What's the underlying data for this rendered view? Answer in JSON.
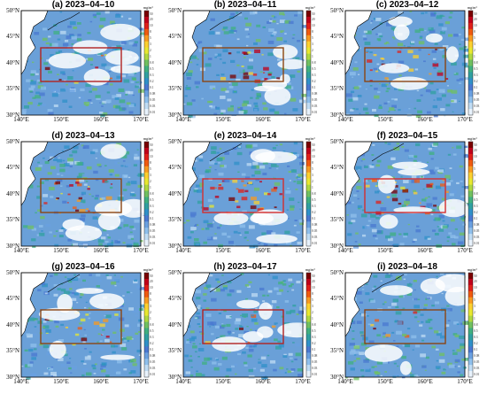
{
  "panels": [
    {
      "title": "(a)  2023–04–10",
      "box_color": "#b22222",
      "intensity": 0.15
    },
    {
      "title": "(b)  2023–04–11",
      "box_color": "#8b4513",
      "intensity": 0.35
    },
    {
      "title": "(c)  2023–04–12",
      "box_color": "#8b4513",
      "intensity": 0.45
    },
    {
      "title": "(d)  2023–04–13",
      "box_color": "#8b4513",
      "intensity": 0.6
    },
    {
      "title": "(e)  2023–04–14",
      "box_color": "#d32f2f",
      "intensity": 0.85
    },
    {
      "title": "(f)  2023–04–15",
      "box_color": "#d32f2f",
      "intensity": 0.5
    },
    {
      "title": "(g)  2023–04–16",
      "box_color": "#8b4513",
      "intensity": 0.25
    },
    {
      "title": "(h)  2023–04–17",
      "box_color": "#b22222",
      "intensity": 0.12
    },
    {
      "title": "(i)  2023–04–18",
      "box_color": "#8b4513",
      "intensity": 0.12
    }
  ],
  "lat_labels": [
    "50°N",
    "45°N",
    "40°N",
    "35°N",
    "30°N"
  ],
  "lon_labels": [
    "140°E",
    "150°E",
    "160°E",
    "170°E"
  ],
  "colorbar": {
    "unit": "mg/m³",
    "ticks": [
      "50",
      "20",
      "10",
      "8",
      "5",
      "3",
      "2",
      "1",
      "0.8",
      "0.5",
      "0.3",
      "0.2",
      "0.1",
      "0.08",
      "0.05",
      "0.03",
      "0.01"
    ],
    "colors": [
      "#7a0000",
      "#c0001a",
      "#e0201a",
      "#f05a10",
      "#f89a20",
      "#fcd030",
      "#e8e830",
      "#b0d840",
      "#70c060",
      "#40b080",
      "#30a0a0",
      "#3090c8",
      "#4a78d0",
      "#6aa0e0",
      "#90c0ec",
      "#c0dcf4",
      "#e8f2fc"
    ]
  },
  "colors": {
    "ocean_low": "#6aa0d8",
    "land": "#ffffff",
    "cloud": "#ffffff",
    "coast": "#000000"
  }
}
